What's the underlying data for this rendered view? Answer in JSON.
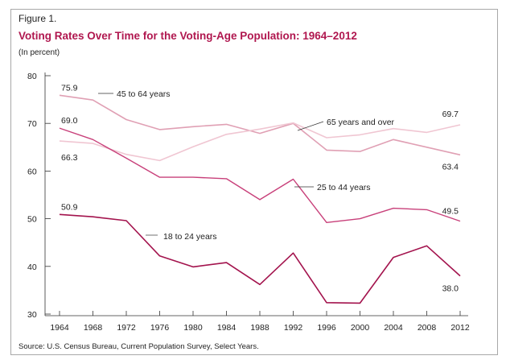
{
  "figure_label": "Figure 1.",
  "source": "Source: U.S. Census Bureau, Current Population Survey, Select Years.",
  "colors": {
    "title": "#b0174f",
    "age_45_64": "#e0a0b4",
    "age_65_over": "#f0c6d2",
    "age_25_44": "#c8407a",
    "age_18_24": "#a3134d"
  },
  "chart_data": {
    "type": "line",
    "title": "Voting Rates Over Time for the Voting-Age Population: 1964–2012",
    "ylabel": "(In percent)",
    "xlabel": "",
    "ylim": [
      30,
      80
    ],
    "yticks": [
      "30",
      "40",
      "50",
      "60",
      "70",
      "80"
    ],
    "x": [
      "1964",
      "1968",
      "1972",
      "1976",
      "1980",
      "1984",
      "1988",
      "1992",
      "1996",
      "2000",
      "2004",
      "2008",
      "2012"
    ],
    "grid": false,
    "series": [
      {
        "name": "45 to 64 years",
        "color_key": "age_45_64",
        "values": [
          75.9,
          74.9,
          70.8,
          68.7,
          69.3,
          69.8,
          67.9,
          70.0,
          64.4,
          64.1,
          66.6,
          65.0,
          63.4
        ],
        "labels": [
          {
            "index": 0,
            "text": "75.9"
          },
          {
            "index": 12,
            "text": "63.4"
          }
        ]
      },
      {
        "name": "65 years and over",
        "color_key": "age_65_over",
        "values": [
          66.3,
          65.8,
          63.5,
          62.2,
          65.1,
          67.7,
          68.8,
          70.1,
          67.0,
          67.6,
          68.9,
          68.1,
          69.7
        ],
        "labels": [
          {
            "index": 0,
            "text": "66.3"
          },
          {
            "index": 12,
            "text": "69.7"
          }
        ]
      },
      {
        "name": "25 to 44 years",
        "color_key": "age_25_44",
        "values": [
          69.0,
          66.6,
          62.7,
          58.7,
          58.7,
          58.4,
          54.0,
          58.3,
          49.2,
          50.0,
          52.2,
          51.9,
          49.5
        ],
        "labels": [
          {
            "index": 0,
            "text": "69.0"
          },
          {
            "index": 12,
            "text": "49.5"
          }
        ]
      },
      {
        "name": "18 to 24 years",
        "color_key": "age_18_24",
        "values": [
          50.9,
          50.4,
          49.6,
          42.2,
          39.9,
          40.8,
          36.2,
          42.8,
          32.4,
          32.3,
          41.9,
          44.3,
          38.0
        ],
        "labels": [
          {
            "index": 0,
            "text": "50.9"
          },
          {
            "index": 12,
            "text": "38.0"
          }
        ]
      }
    ]
  }
}
